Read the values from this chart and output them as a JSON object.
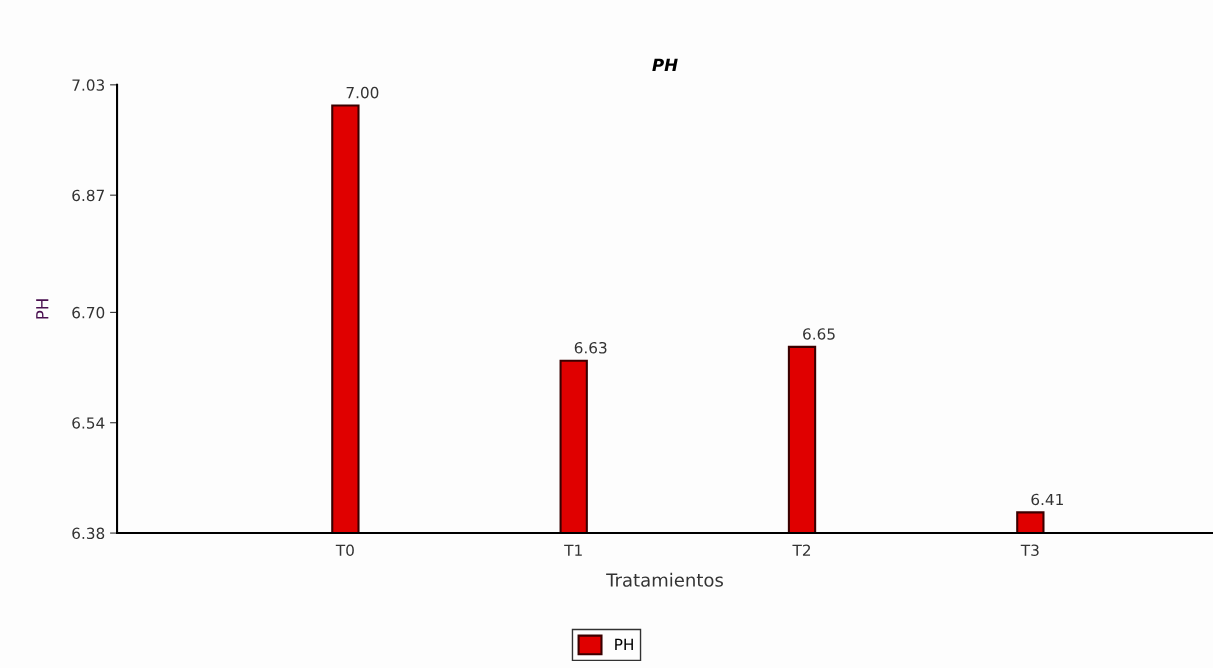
{
  "chart_data": {
    "type": "bar",
    "title": "PH",
    "xlabel": "Tratamientos",
    "ylabel": "PH",
    "categories": [
      "T0",
      "T1",
      "T2",
      "T3"
    ],
    "series": [
      {
        "name": "PH",
        "color": "#e00000",
        "values": [
          7.0,
          6.63,
          6.65,
          6.41
        ],
        "value_labels": [
          "7.00",
          "6.63",
          "6.65",
          "6.41"
        ]
      }
    ],
    "ylim": [
      6.38,
      7.03
    ],
    "yticks": [
      6.38,
      6.54,
      {
        "value": 6.7,
        "label": "6.70"
      },
      6.87,
      7.03
    ],
    "grid": false,
    "legend": "bottom"
  }
}
